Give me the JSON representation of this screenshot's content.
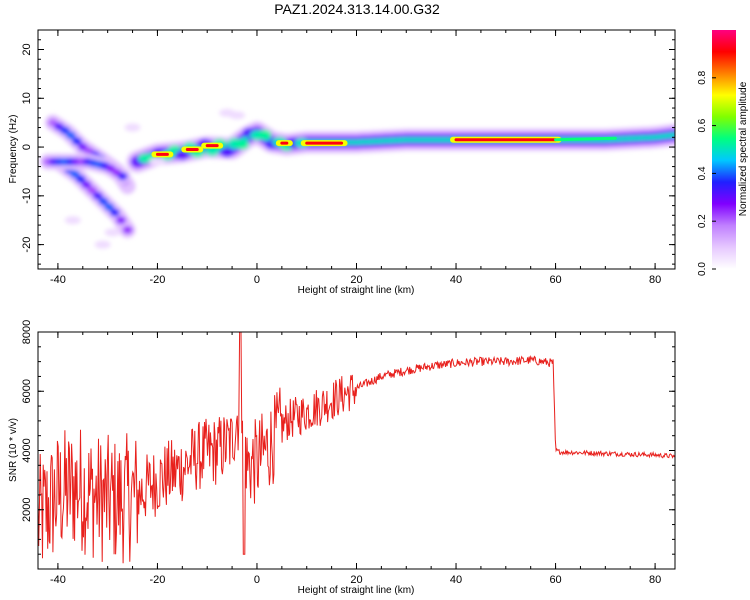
{
  "title": "PAZ1.2024.313.14.00.G32",
  "chart_data": [
    {
      "type": "heatmap",
      "xlabel": "Height of straight line (km)",
      "ylabel": "Frequency (Hz)",
      "xlim": [
        -44,
        84
      ],
      "ylim": [
        -25,
        24
      ],
      "xticks": [
        -40,
        -20,
        0,
        20,
        40,
        60,
        80
      ],
      "yticks": [
        -20,
        -10,
        0,
        10,
        20
      ],
      "colorbar": {
        "label": "Normalized spectral amplitude",
        "range": [
          0.0,
          1.0
        ],
        "ticks": [
          0.0,
          0.2,
          0.4,
          0.6,
          0.8
        ],
        "colormap": [
          "#ffffff",
          "#e6c8ff",
          "#c080ff",
          "#8000ff",
          "#2020ff",
          "#00c8ff",
          "#00ff80",
          "#80ff00",
          "#ffff00",
          "#ff8000",
          "#ff0000",
          "#ff0080"
        ]
      },
      "features": [
        {
          "segment": "main_trace",
          "x": [
            -24,
            -20,
            -15,
            -10,
            -5,
            -2,
            0,
            3,
            6,
            10,
            20,
            30,
            40,
            50,
            60,
            70,
            80,
            84
          ],
          "y": [
            -3,
            -1.5,
            -1,
            0,
            -0.3,
            2,
            3,
            1,
            0.5,
            1,
            1,
            1.5,
            1.5,
            1.5,
            1.5,
            1.5,
            2,
            2.5
          ]
        },
        {
          "segment": "left_branch_upper",
          "x": [
            -41,
            -38,
            -35,
            -32,
            -28,
            -26
          ],
          "y": [
            5,
            3,
            0,
            -2,
            -5,
            -8
          ]
        },
        {
          "segment": "left_branch_lower",
          "x": [
            -40,
            -36,
            -32,
            -28,
            -26
          ],
          "y": [
            -3,
            -6,
            -10,
            -14,
            -17
          ]
        },
        {
          "segment": "left_mid",
          "x": [
            -42,
            -38,
            -34,
            -30,
            -27
          ],
          "y": [
            -3,
            -3,
            -3,
            -4,
            -6
          ]
        }
      ],
      "peak_segments": [
        {
          "x": [
            -20,
            -18
          ],
          "y": -1.5
        },
        {
          "x": [
            -14,
            -12
          ],
          "y": -0.5
        },
        {
          "x": [
            -10,
            -8
          ],
          "y": 0.3
        },
        {
          "x": [
            5,
            6
          ],
          "y": 0.8
        },
        {
          "x": [
            10,
            17
          ],
          "y": 0.8
        },
        {
          "x": [
            40,
            60
          ],
          "y": 1.5
        }
      ]
    },
    {
      "type": "line",
      "xlabel": "Height of straight line (km)",
      "ylabel": "SNR (10 * v/v)",
      "xlim": [
        -44,
        84
      ],
      "ylim": [
        0,
        8000
      ],
      "xticks": [
        -40,
        -20,
        0,
        20,
        40,
        60,
        80
      ],
      "yticks": [
        2000,
        4000,
        6000,
        8000
      ],
      "color": "#e8201c",
      "series": [
        {
          "x": [
            -44,
            -40,
            -36,
            -32,
            -28,
            -24,
            -20,
            -16,
            -12,
            -8,
            -5,
            -3,
            -2,
            0,
            3,
            6,
            10,
            15,
            20,
            25,
            30,
            35,
            40,
            45,
            50,
            55,
            59.5,
            60,
            61,
            70,
            80,
            84
          ],
          "y": [
            1600,
            2500,
            2800,
            2400,
            2300,
            2500,
            3000,
            3300,
            3800,
            4000,
            4300,
            6000,
            3500,
            3600,
            4300,
            5000,
            5300,
            5700,
            6100,
            6500,
            6700,
            6850,
            6950,
            7000,
            7000,
            7050,
            6950,
            4000,
            3950,
            3900,
            3850,
            3800
          ]
        }
      ]
    }
  ]
}
